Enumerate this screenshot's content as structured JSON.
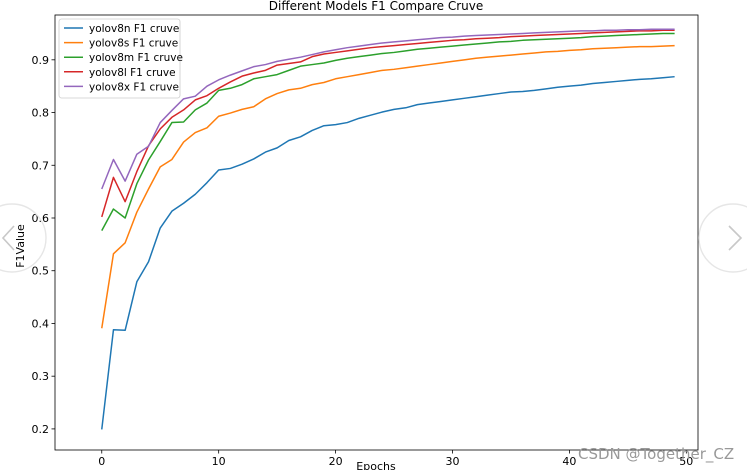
{
  "chart_data": {
    "type": "line",
    "title": "Different Models F1 Compare Cruve",
    "xlabel": "Epochs",
    "ylabel": "F1Value",
    "xlim": [
      -4,
      51
    ],
    "ylim": [
      0.16,
      0.985
    ],
    "xticks": [
      0,
      10,
      20,
      30,
      40,
      50
    ],
    "yticks": [
      0.2,
      0.3,
      0.4,
      0.5,
      0.6,
      0.7,
      0.8,
      0.9
    ],
    "grid": false,
    "legend_position": "top-left",
    "series": [
      {
        "name": "yolov8n F1 cruve",
        "color": "#1f77b4",
        "values": [
          0.199,
          0.388,
          0.387,
          0.479,
          0.517,
          0.581,
          0.613,
          0.628,
          0.645,
          0.667,
          0.691,
          0.694,
          0.702,
          0.712,
          0.725,
          0.733,
          0.747,
          0.754,
          0.766,
          0.775,
          0.777,
          0.781,
          0.789,
          0.795,
          0.801,
          0.806,
          0.809,
          0.815,
          0.818,
          0.821,
          0.824,
          0.827,
          0.83,
          0.833,
          0.836,
          0.839,
          0.84,
          0.842,
          0.845,
          0.848,
          0.85,
          0.852,
          0.855,
          0.857,
          0.859,
          0.861,
          0.863,
          0.864,
          0.866,
          0.868
        ]
      },
      {
        "name": "yolov8s F1 cruve",
        "color": "#ff7f0e",
        "values": [
          0.391,
          0.532,
          0.553,
          0.611,
          0.655,
          0.697,
          0.711,
          0.744,
          0.762,
          0.771,
          0.793,
          0.799,
          0.806,
          0.811,
          0.826,
          0.836,
          0.843,
          0.846,
          0.853,
          0.857,
          0.864,
          0.868,
          0.872,
          0.876,
          0.88,
          0.882,
          0.885,
          0.888,
          0.891,
          0.894,
          0.897,
          0.9,
          0.903,
          0.905,
          0.907,
          0.909,
          0.911,
          0.913,
          0.915,
          0.916,
          0.918,
          0.919,
          0.921,
          0.922,
          0.923,
          0.924,
          0.925,
          0.925,
          0.926,
          0.927
        ]
      },
      {
        "name": "yolov8m F1 cruve",
        "color": "#2ca02c",
        "values": [
          0.576,
          0.617,
          0.6,
          0.665,
          0.71,
          0.745,
          0.781,
          0.782,
          0.805,
          0.818,
          0.842,
          0.846,
          0.853,
          0.864,
          0.868,
          0.872,
          0.88,
          0.888,
          0.891,
          0.894,
          0.899,
          0.903,
          0.906,
          0.909,
          0.912,
          0.914,
          0.917,
          0.92,
          0.922,
          0.924,
          0.926,
          0.928,
          0.93,
          0.932,
          0.934,
          0.935,
          0.937,
          0.938,
          0.939,
          0.94,
          0.941,
          0.942,
          0.944,
          0.945,
          0.946,
          0.947,
          0.948,
          0.949,
          0.95,
          0.95
        ]
      },
      {
        "name": "yolov8l F1 cruve",
        "color": "#d62728",
        "values": [
          0.602,
          0.677,
          0.631,
          0.688,
          0.737,
          0.769,
          0.791,
          0.805,
          0.824,
          0.832,
          0.846,
          0.858,
          0.869,
          0.875,
          0.88,
          0.89,
          0.893,
          0.896,
          0.906,
          0.911,
          0.914,
          0.917,
          0.92,
          0.923,
          0.925,
          0.927,
          0.929,
          0.931,
          0.933,
          0.935,
          0.937,
          0.938,
          0.94,
          0.941,
          0.942,
          0.944,
          0.945,
          0.946,
          0.947,
          0.948,
          0.949,
          0.95,
          0.951,
          0.952,
          0.953,
          0.954,
          0.955,
          0.955,
          0.956,
          0.956
        ]
      },
      {
        "name": "yolov8x F1 cruve",
        "color": "#9467bd",
        "values": [
          0.655,
          0.711,
          0.67,
          0.721,
          0.736,
          0.781,
          0.804,
          0.826,
          0.831,
          0.85,
          0.862,
          0.871,
          0.879,
          0.887,
          0.891,
          0.897,
          0.901,
          0.905,
          0.91,
          0.915,
          0.919,
          0.923,
          0.926,
          0.929,
          0.932,
          0.934,
          0.936,
          0.938,
          0.94,
          0.942,
          0.943,
          0.945,
          0.946,
          0.947,
          0.948,
          0.949,
          0.95,
          0.951,
          0.952,
          0.953,
          0.954,
          0.955,
          0.955,
          0.956,
          0.956,
          0.957,
          0.957,
          0.958,
          0.958,
          0.958
        ]
      }
    ]
  },
  "watermark": "CSDN @Together_CZ",
  "nav": {
    "prev_icon": "chevron-left-circle-icon",
    "next_icon": "chevron-right-circle-icon"
  }
}
